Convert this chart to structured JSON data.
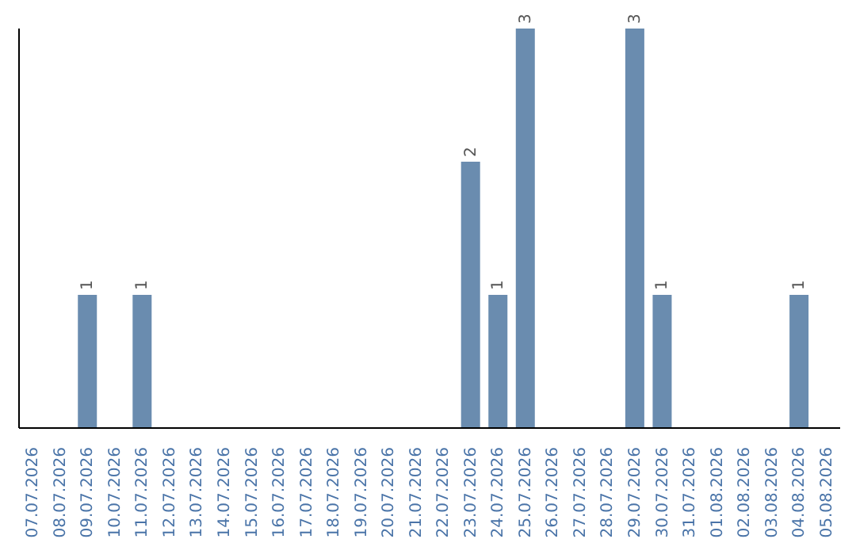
{
  "chart_data": {
    "type": "bar",
    "categories": [
      "07.07.2026",
      "08.07.2026",
      "09.07.2026",
      "10.07.2026",
      "11.07.2026",
      "12.07.2026",
      "13.07.2026",
      "14.07.2026",
      "15.07.2026",
      "16.07.2026",
      "17.07.2026",
      "18.07.2026",
      "19.07.2026",
      "20.07.2026",
      "21.07.2026",
      "22.07.2026",
      "23.07.2026",
      "24.07.2026",
      "25.07.2026",
      "26.07.2026",
      "27.07.2026",
      "28.07.2026",
      "29.07.2026",
      "30.07.2026",
      "31.07.2026",
      "01.08.2026",
      "02.08.2026",
      "03.08.2026",
      "04.08.2026",
      "05.08.2026"
    ],
    "values": [
      null,
      null,
      1,
      null,
      1,
      null,
      null,
      null,
      null,
      null,
      null,
      null,
      null,
      null,
      null,
      null,
      2,
      1,
      3,
      null,
      null,
      null,
      3,
      1,
      null,
      null,
      null,
      null,
      1,
      null
    ],
    "color": "#6a8caf",
    "data_labels": true,
    "grid": false,
    "legend": false
  }
}
